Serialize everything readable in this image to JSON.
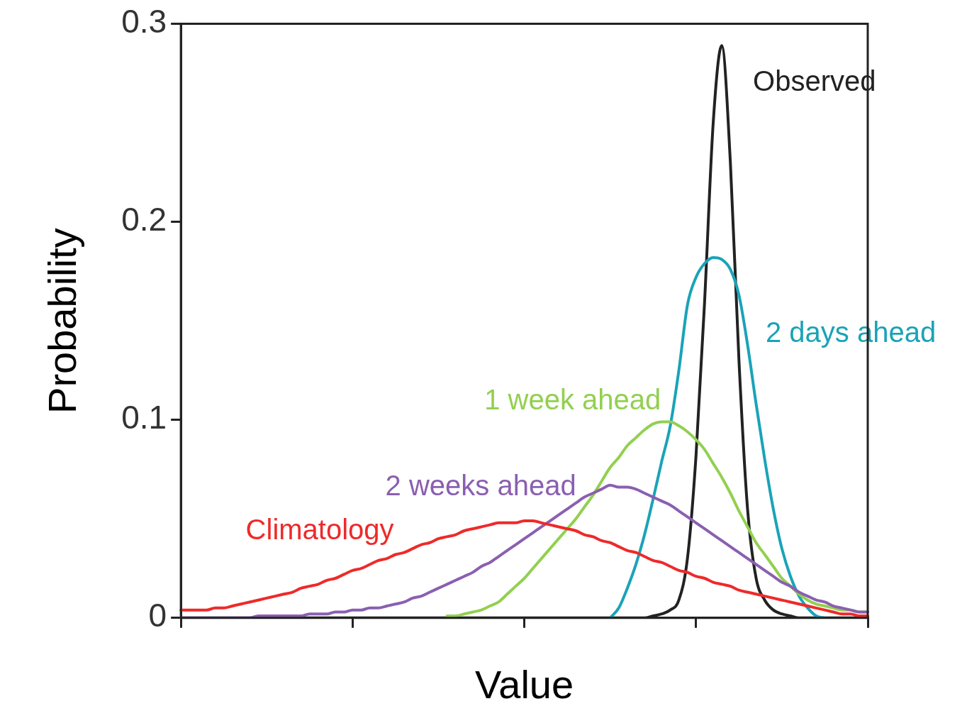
{
  "chart_data": {
    "type": "line",
    "xlabel": "Value",
    "ylabel": "Probability",
    "categories": [
      null,
      null,
      null,
      null,
      null,
      null,
      null,
      null,
      null,
      null,
      null,
      null,
      null,
      null,
      null,
      null,
      null,
      null,
      null,
      null,
      null,
      null,
      null,
      null,
      null,
      null,
      null,
      null,
      null,
      null,
      null,
      null,
      null,
      null,
      null,
      null,
      null,
      null,
      null,
      null,
      null,
      null,
      null,
      null,
      null,
      null,
      null,
      null,
      null,
      null,
      null,
      null,
      null,
      null,
      null,
      null,
      null,
      null,
      null,
      null,
      null,
      null,
      null,
      null,
      null,
      null,
      null,
      null,
      null,
      null,
      null,
      null,
      null,
      null,
      null,
      null,
      null,
      null,
      null,
      null,
      null
    ],
    "ylim": [
      0,
      0.3
    ],
    "yticks": [
      0,
      0.1,
      0.2,
      0.3
    ],
    "grid": false,
    "legend": false,
    "marker": "none",
    "line_style": "solid",
    "tick_labels": "y",
    "series": [
      {
        "name": "Climatology",
        "color": "#ee2a2a",
        "values": [
          0.004,
          0.004,
          0.004,
          0.004,
          0.005,
          0.005,
          0.006,
          0.007,
          0.008,
          0.009,
          0.01,
          0.011,
          0.012,
          0.013,
          0.015,
          0.016,
          0.017,
          0.019,
          0.02,
          0.022,
          0.024,
          0.025,
          0.027,
          0.029,
          0.03,
          0.032,
          0.033,
          0.035,
          0.037,
          0.038,
          0.04,
          0.041,
          0.042,
          0.044,
          0.045,
          0.046,
          0.047,
          0.048,
          0.048,
          0.048,
          0.049,
          0.049,
          0.048,
          0.047,
          0.046,
          0.045,
          0.044,
          0.042,
          0.041,
          0.039,
          0.038,
          0.036,
          0.034,
          0.033,
          0.031,
          0.029,
          0.028,
          0.026,
          0.024,
          0.023,
          0.021,
          0.02,
          0.018,
          0.017,
          0.016,
          0.014,
          0.013,
          0.012,
          0.011,
          0.01,
          0.009,
          0.008,
          0.007,
          0.006,
          0.005,
          0.004,
          0.003,
          0.002,
          0.002,
          0.001,
          0.001
        ]
      },
      {
        "name": "2 weeks ahead",
        "color": "#8a5fb0",
        "values": [
          0.0,
          0.0,
          0.0,
          0.0,
          0.0,
          0.0,
          0.0,
          0.0,
          0.0,
          0.001,
          0.001,
          0.001,
          0.001,
          0.001,
          0.001,
          0.002,
          0.002,
          0.002,
          0.003,
          0.003,
          0.004,
          0.004,
          0.005,
          0.005,
          0.006,
          0.007,
          0.008,
          0.01,
          0.011,
          0.013,
          0.015,
          0.017,
          0.019,
          0.021,
          0.023,
          0.026,
          0.028,
          0.031,
          0.034,
          0.037,
          0.04,
          0.043,
          0.046,
          0.049,
          0.052,
          0.055,
          0.058,
          0.061,
          0.063,
          0.065,
          0.067,
          0.066,
          0.066,
          0.065,
          0.063,
          0.061,
          0.059,
          0.057,
          0.054,
          0.051,
          0.048,
          0.045,
          0.042,
          0.039,
          0.036,
          0.033,
          0.03,
          0.027,
          0.024,
          0.021,
          0.018,
          0.016,
          0.013,
          0.011,
          0.009,
          0.008,
          0.006,
          0.005,
          0.004,
          0.003,
          0.003
        ]
      },
      {
        "name": "1 week ahead",
        "color": "#92d050",
        "values": [
          null,
          null,
          null,
          null,
          null,
          null,
          null,
          null,
          null,
          null,
          null,
          null,
          null,
          null,
          null,
          null,
          null,
          null,
          null,
          null,
          null,
          null,
          null,
          null,
          null,
          null,
          null,
          null,
          null,
          null,
          null,
          0.001,
          0.001,
          0.002,
          0.003,
          0.004,
          0.006,
          0.008,
          0.012,
          0.016,
          0.02,
          0.025,
          0.03,
          0.035,
          0.04,
          0.045,
          0.05,
          0.056,
          0.062,
          0.069,
          0.076,
          0.081,
          0.087,
          0.091,
          0.095,
          0.098,
          0.099,
          0.099,
          0.097,
          0.094,
          0.09,
          0.085,
          0.078,
          0.071,
          0.063,
          0.054,
          0.046,
          0.038,
          0.032,
          0.026,
          0.02,
          0.016,
          0.012,
          0.009,
          0.007,
          0.006,
          0.005,
          0.004,
          0.004,
          0.003,
          0.003
        ]
      },
      {
        "name": "2 days ahead",
        "color": "#1aa3b8",
        "values": [
          null,
          null,
          null,
          null,
          null,
          null,
          null,
          null,
          null,
          null,
          null,
          null,
          null,
          null,
          null,
          null,
          null,
          null,
          null,
          null,
          null,
          null,
          null,
          null,
          null,
          null,
          null,
          null,
          null,
          null,
          null,
          null,
          null,
          null,
          null,
          null,
          null,
          null,
          null,
          null,
          null,
          null,
          null,
          null,
          null,
          null,
          null,
          null,
          null,
          null,
          0,
          0.005,
          0.015,
          0.027,
          0.042,
          0.06,
          0.079,
          0.097,
          0.125,
          0.158,
          0.172,
          0.179,
          0.182,
          0.181,
          0.176,
          0.163,
          0.138,
          0.108,
          0.08,
          0.055,
          0.035,
          0.021,
          0.011,
          0.005,
          0.001,
          0,
          null,
          null,
          null,
          null,
          null
        ]
      },
      {
        "name": "Observed",
        "color": "#222222",
        "values": [
          0,
          0,
          0,
          0,
          0,
          0,
          0,
          0,
          0,
          0,
          0,
          0,
          0,
          0,
          0,
          0,
          0,
          0,
          0,
          0,
          0,
          0,
          0,
          0,
          0,
          0,
          0,
          0,
          0,
          0,
          0,
          0,
          0,
          0,
          0,
          0,
          0,
          0,
          0,
          0,
          0,
          0,
          0,
          0,
          0,
          0,
          0,
          0,
          0,
          0,
          0,
          0,
          0,
          0,
          0,
          0.001,
          0.002,
          0.004,
          0.009,
          0.03,
          0.082,
          0.16,
          0.25,
          0.289,
          0.23,
          0.13,
          0.055,
          0.02,
          0.009,
          0.004,
          0.002,
          0.001,
          0,
          0,
          0,
          0,
          0,
          0,
          0,
          0,
          0
        ]
      }
    ]
  }
}
